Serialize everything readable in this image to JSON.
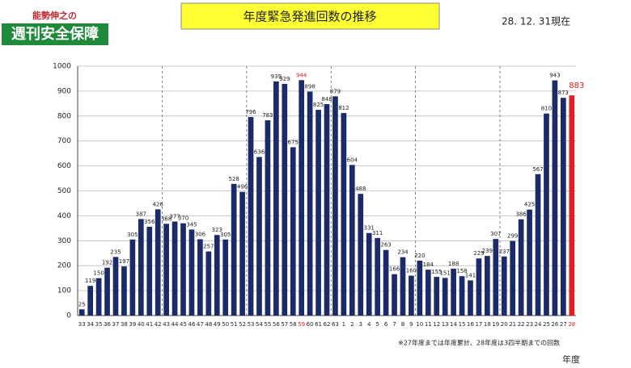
{
  "chart_data": {
    "type": "bar",
    "title": "年度緊急発進回数の推移",
    "subtitle": "28. 12. 31現在",
    "logo_small": "能勢伸之の",
    "logo": "週刊安全保障",
    "note": "※27年度までは年度累計、28年度は3四半期までの回数",
    "xlabel": "年度",
    "categories": [
      "33",
      "34",
      "35",
      "36",
      "37",
      "38",
      "39",
      "40",
      "41",
      "42",
      "43",
      "44",
      "45",
      "46",
      "47",
      "48",
      "49",
      "50",
      "51",
      "52",
      "53",
      "54",
      "55",
      "56",
      "57",
      "58",
      "59",
      "60",
      "61",
      "62",
      "63",
      "1",
      "2",
      "3",
      "4",
      "5",
      "6",
      "7",
      "8",
      "9",
      "10",
      "11",
      "12",
      "13",
      "14",
      "15",
      "16",
      "17",
      "18",
      "19",
      "20",
      "21",
      "22",
      "23",
      "24",
      "25",
      "26",
      "27",
      "28"
    ],
    "values": [
      25,
      119,
      150,
      192,
      235,
      197,
      305,
      387,
      356,
      426,
      368,
      377,
      370,
      345,
      306,
      257,
      323,
      305,
      528,
      496,
      796,
      636,
      783,
      939,
      929,
      675,
      944,
      898,
      825,
      848,
      879,
      812,
      604,
      488,
      331,
      311,
      263,
      166,
      234,
      160,
      220,
      184,
      155,
      151,
      188,
      158,
      141,
      229,
      239,
      307,
      237,
      299,
      386,
      425,
      567,
      810,
      943,
      873,
      883
    ],
    "colors": [
      "#1b2a68",
      "#1b2a68",
      "#1b2a68",
      "#1b2a68",
      "#1b2a68",
      "#1b2a68",
      "#1b2a68",
      "#1b2a68",
      "#1b2a68",
      "#1b2a68",
      "#1b2a68",
      "#1b2a68",
      "#1b2a68",
      "#1b2a68",
      "#1b2a68",
      "#1b2a68",
      "#1b2a68",
      "#1b2a68",
      "#1b2a68",
      "#1b2a68",
      "#1b2a68",
      "#1b2a68",
      "#1b2a68",
      "#1b2a68",
      "#1b2a68",
      "#1b2a68",
      "#1b2a68",
      "#1b2a68",
      "#1b2a68",
      "#1b2a68",
      "#1b2a68",
      "#1b2a68",
      "#1b2a68",
      "#1b2a68",
      "#1b2a68",
      "#1b2a68",
      "#1b2a68",
      "#1b2a68",
      "#1b2a68",
      "#1b2a68",
      "#1b2a68",
      "#1b2a68",
      "#1b2a68",
      "#1b2a68",
      "#1b2a68",
      "#1b2a68",
      "#1b2a68",
      "#1b2a68",
      "#1b2a68",
      "#1b2a68",
      "#1b2a68",
      "#1b2a68",
      "#1b2a68",
      "#1b2a68",
      "#1b2a68",
      "#1b2a68",
      "#1b2a68",
      "#1b2a68",
      "#e02020"
    ],
    "label_colors": [
      "#222",
      "#222",
      "#222",
      "#222",
      "#222",
      "#222",
      "#222",
      "#222",
      "#222",
      "#222",
      "#222",
      "#222",
      "#222",
      "#222",
      "#222",
      "#222",
      "#222",
      "#222",
      "#222",
      "#222",
      "#222",
      "#222",
      "#222",
      "#222",
      "#222",
      "#222",
      "#e02020",
      "#222",
      "#222",
      "#222",
      "#222",
      "#222",
      "#222",
      "#222",
      "#222",
      "#222",
      "#222",
      "#222",
      "#222",
      "#222",
      "#222",
      "#222",
      "#222",
      "#222",
      "#222",
      "#222",
      "#222",
      "#222",
      "#222",
      "#222",
      "#222",
      "#222",
      "#222",
      "#222",
      "#222",
      "#222",
      "#222",
      "#222",
      "#e02020"
    ],
    "ylim": [
      0,
      1000
    ],
    "yticks": [
      0,
      100,
      200,
      300,
      400,
      500,
      600,
      700,
      800,
      900,
      1000
    ],
    "grid": true
  }
}
